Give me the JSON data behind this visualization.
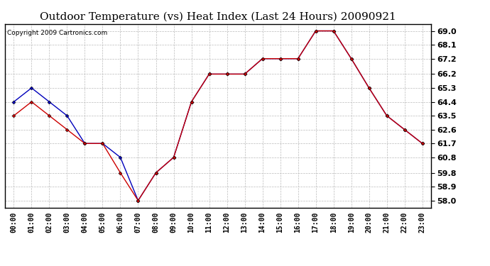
{
  "title": "Outdoor Temperature (vs) Heat Index (Last 24 Hours) 20090921",
  "copyright": "Copyright 2009 Cartronics.com",
  "hours": [
    "00:00",
    "01:00",
    "02:00",
    "03:00",
    "04:00",
    "05:00",
    "06:00",
    "07:00",
    "08:00",
    "09:00",
    "10:00",
    "11:00",
    "12:00",
    "13:00",
    "14:00",
    "15:00",
    "16:00",
    "17:00",
    "18:00",
    "19:00",
    "20:00",
    "21:00",
    "22:00",
    "23:00"
  ],
  "blue_line": [
    64.4,
    65.3,
    64.4,
    63.5,
    61.7,
    61.7,
    60.8,
    58.0,
    59.8,
    60.8,
    64.4,
    66.2,
    66.2,
    66.2,
    67.2,
    67.2,
    67.2,
    69.0,
    69.0,
    67.2,
    65.3,
    63.5,
    62.6,
    61.7
  ],
  "red_line": [
    63.5,
    64.4,
    63.5,
    62.6,
    61.7,
    61.7,
    59.8,
    58.0,
    59.8,
    60.8,
    64.4,
    66.2,
    66.2,
    66.2,
    67.2,
    67.2,
    67.2,
    69.0,
    69.0,
    67.2,
    65.3,
    63.5,
    62.6,
    61.7
  ],
  "yticks": [
    58.0,
    58.9,
    59.8,
    60.8,
    61.7,
    62.6,
    63.5,
    64.4,
    65.3,
    66.2,
    67.2,
    68.1,
    69.0
  ],
  "ylim": [
    57.55,
    69.45
  ],
  "xlim": [
    -0.5,
    23.5
  ],
  "fig_bg": "#ffffff",
  "plot_bg": "#ffffff",
  "grid_color": "#bbbbbb",
  "blue_color": "#0000bb",
  "red_color": "#cc0000",
  "title_fontsize": 11,
  "copyright_fontsize": 6.5,
  "tick_fontsize": 7,
  "ytick_fontsize": 8
}
